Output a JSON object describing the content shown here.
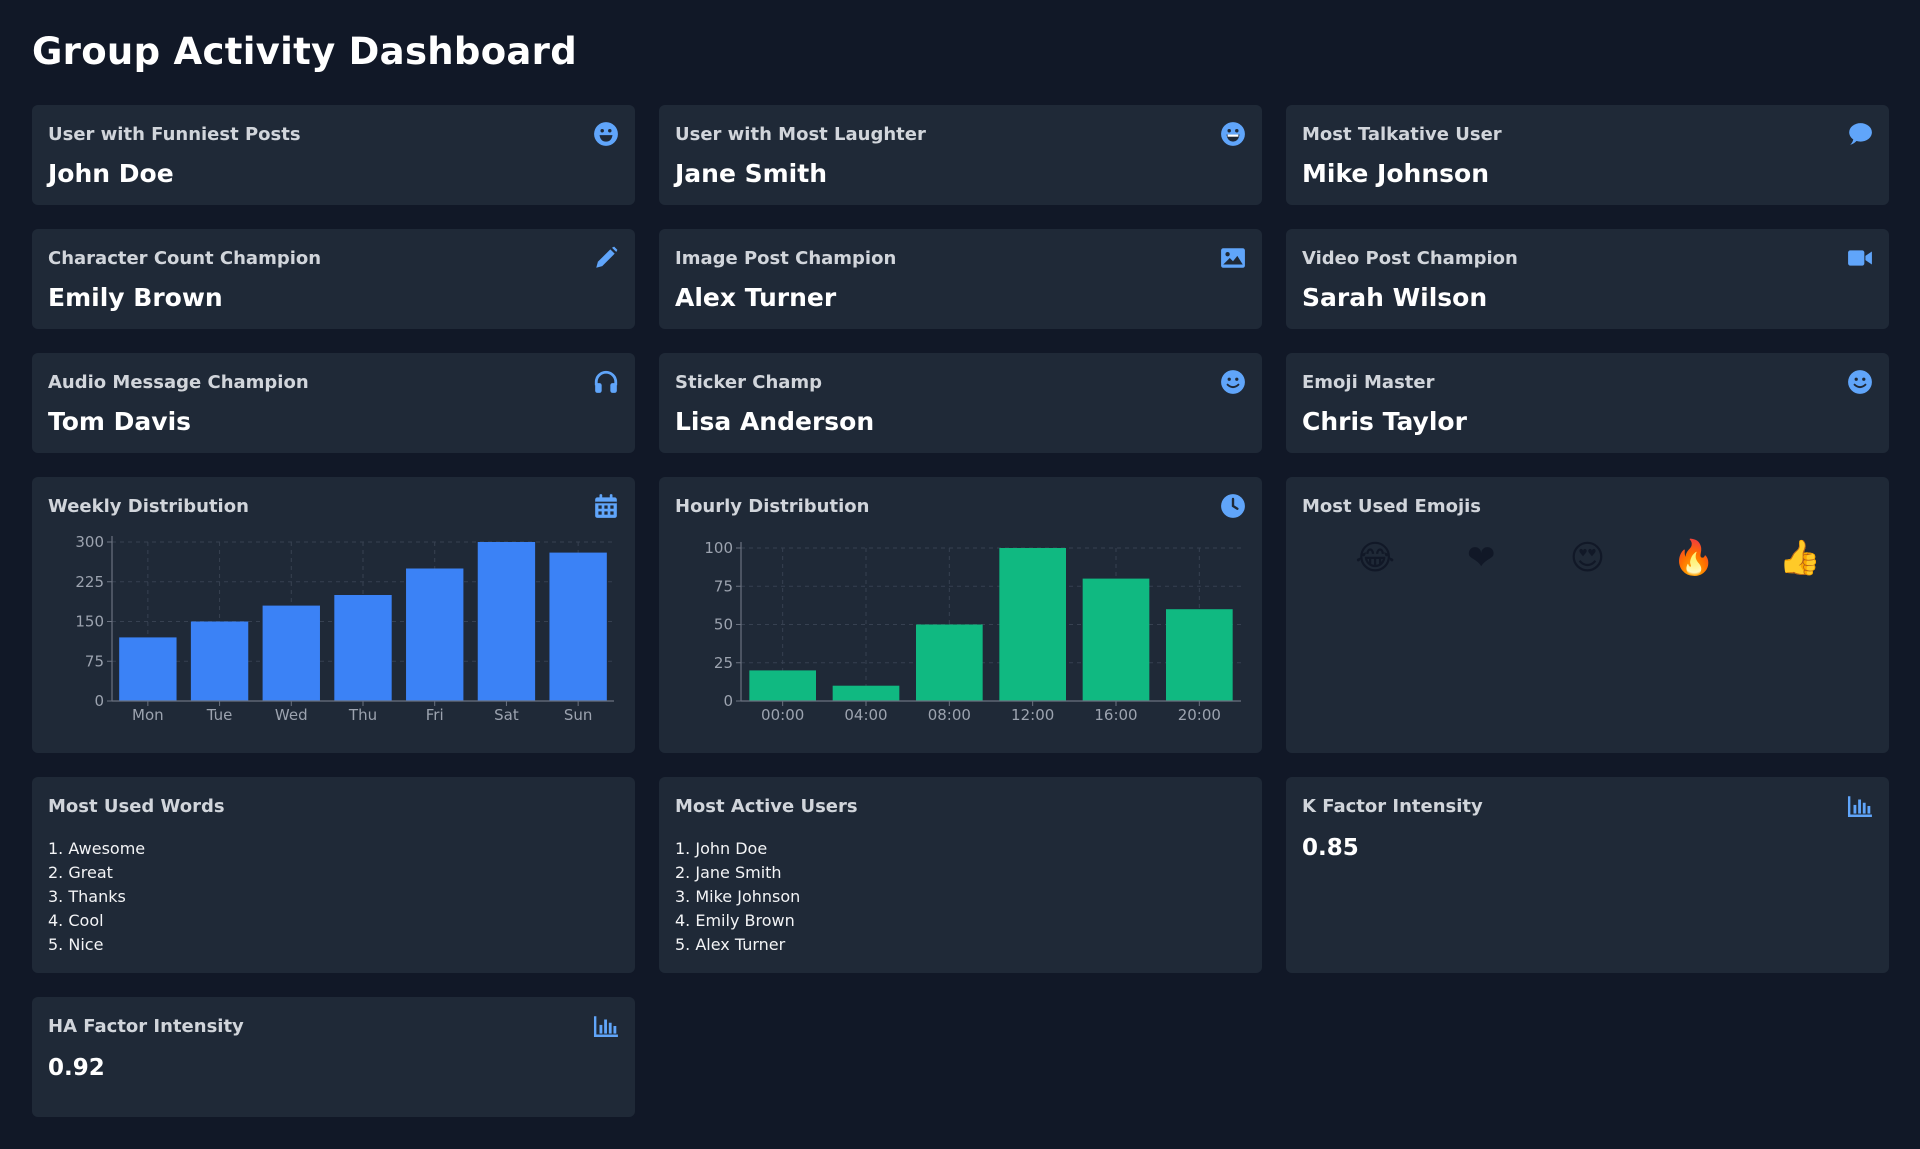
{
  "title": "Group Activity Dashboard",
  "colors": {
    "accent": "#60a5fa",
    "weekly_bar": "#3b82f6",
    "hourly_bar": "#10b981"
  },
  "stats": [
    {
      "title": "User with Funniest Posts",
      "value": "John Doe",
      "icon": "grin-icon"
    },
    {
      "title": "User with Most Laughter",
      "value": "Jane Smith",
      "icon": "laugh-icon"
    },
    {
      "title": "Most Talkative User",
      "value": "Mike Johnson",
      "icon": "comment-icon"
    },
    {
      "title": "Character Count Champion",
      "value": "Emily Brown",
      "icon": "pencil-icon"
    },
    {
      "title": "Image Post Champion",
      "value": "Alex Turner",
      "icon": "image-icon"
    },
    {
      "title": "Video Post Champion",
      "value": "Sarah Wilson",
      "icon": "video-icon"
    },
    {
      "title": "Audio Message Champion",
      "value": "Tom Davis",
      "icon": "headphones-icon"
    },
    {
      "title": "Sticker Champ",
      "value": "Lisa Anderson",
      "icon": "smile-icon"
    },
    {
      "title": "Emoji Master",
      "value": "Chris Taylor",
      "icon": "smile-icon"
    }
  ],
  "weekly": {
    "title": "Weekly Distribution",
    "icon": "calendar-icon"
  },
  "hourly": {
    "title": "Hourly Distribution",
    "icon": "clock-icon"
  },
  "emojis": {
    "title": "Most Used Emojis",
    "items": [
      "😂",
      "❤",
      "😍",
      "🔥",
      "👍"
    ]
  },
  "words": {
    "title": "Most Used Words",
    "items": [
      "1. Awesome",
      "2. Great",
      "3. Thanks",
      "4. Cool",
      "5. Nice"
    ]
  },
  "active_users": {
    "title": "Most Active Users",
    "items": [
      "1. John Doe",
      "2. Jane Smith",
      "3. Mike Johnson",
      "4. Emily Brown",
      "5. Alex Turner"
    ]
  },
  "k_factor": {
    "title": "K Factor Intensity",
    "value": "0.85",
    "icon": "chart-bar-icon"
  },
  "ha_factor": {
    "title": "HA Factor Intensity",
    "value": "0.92",
    "icon": "chart-bar-icon"
  },
  "chart_data": [
    {
      "type": "bar",
      "categories": [
        "Mon",
        "Tue",
        "Wed",
        "Thu",
        "Fri",
        "Sat",
        "Sun"
      ],
      "values": [
        120,
        150,
        180,
        200,
        250,
        300,
        280
      ],
      "yticks": [
        0,
        75,
        150,
        225,
        300
      ],
      "ylim": [
        0,
        300
      ],
      "grid": true
    },
    {
      "type": "bar",
      "categories": [
        "00:00",
        "04:00",
        "08:00",
        "12:00",
        "16:00",
        "20:00"
      ],
      "values": [
        20,
        10,
        50,
        100,
        80,
        60
      ],
      "yticks": [
        0,
        25,
        50,
        75,
        100
      ],
      "ylim": [
        0,
        100
      ],
      "grid": true
    }
  ]
}
